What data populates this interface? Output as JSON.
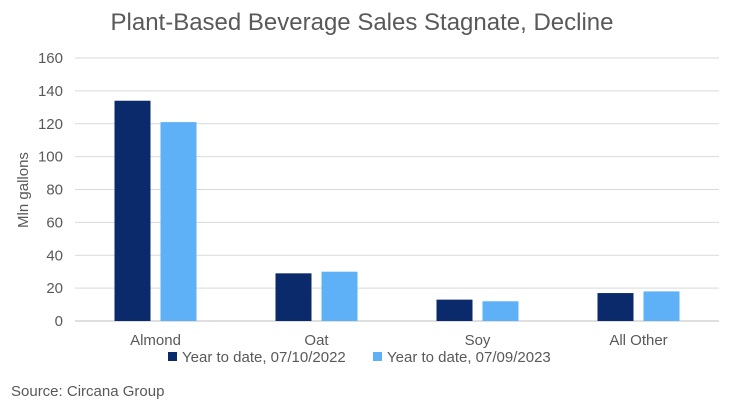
{
  "chart_data": {
    "type": "bar",
    "title": "Plant-Based Beverage Sales Stagnate, Decline",
    "xlabel": "",
    "ylabel": "Mln gallons",
    "ylim": [
      0,
      160
    ],
    "yticks": [
      0,
      20,
      40,
      60,
      80,
      100,
      120,
      140,
      160
    ],
    "grid": true,
    "legend_position": "bottom",
    "categories": [
      "Almond",
      "Oat",
      "Soy",
      "All Other"
    ],
    "series": [
      {
        "name": "Year to date, 07/10/2022",
        "color": "#0b2a6b",
        "values": [
          134,
          29,
          13,
          17
        ]
      },
      {
        "name": "Year to date, 07/09/2023",
        "color": "#5eb1f7",
        "values": [
          121,
          30,
          12,
          18
        ]
      }
    ],
    "source": "Source: Circana Group"
  }
}
